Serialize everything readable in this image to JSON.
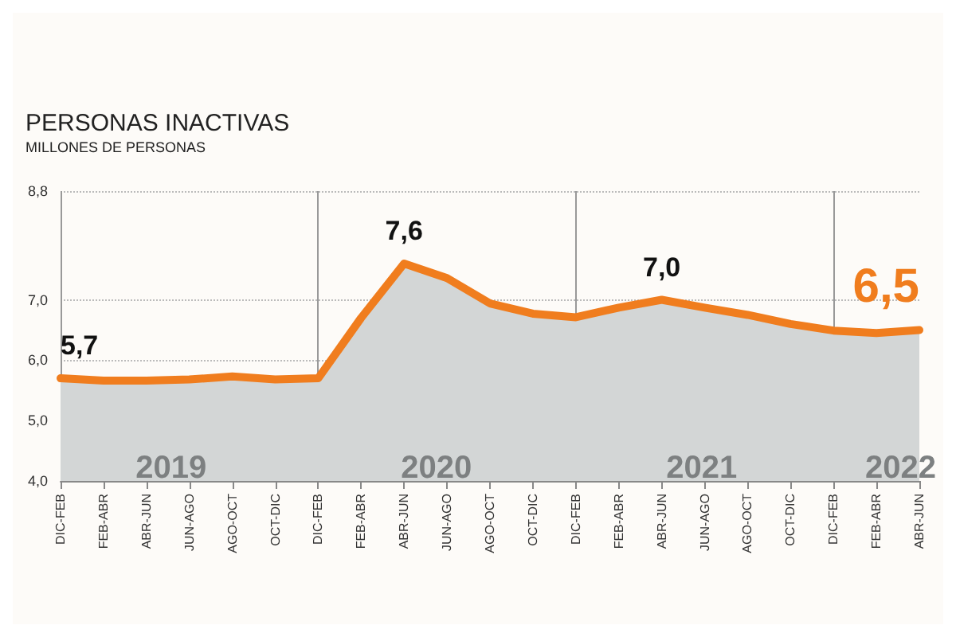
{
  "chart_data": {
    "type": "area",
    "title": "PERSONAS INACTIVAS",
    "subtitle": "MILLONES DE PERSONAS",
    "categories": [
      "DIC-FEB",
      "FEB-ABR",
      "ABR-JUN",
      "JUN-AGO",
      "AGO-OCT",
      "OCT-DIC",
      "DIC-FEB",
      "FEB-ABR",
      "ABR-JUN",
      "JUN-AGO",
      "AGO-OCT",
      "OCT-DIC",
      "DIC-FEB",
      "FEB-ABR",
      "ABR-JUN",
      "JUN-AGO",
      "AGO-OCT",
      "OCT-DIC",
      "DIC-FEB",
      "FEB-ABR",
      "ABR-JUN"
    ],
    "series": [
      {
        "color": "#f07d1e",
        "values": [
          5.7,
          5.66,
          5.66,
          5.68,
          5.73,
          5.68,
          5.7,
          6.7,
          7.6,
          7.36,
          6.94,
          6.77,
          6.71,
          6.87,
          7.0,
          6.87,
          6.75,
          6.6,
          6.49,
          6.45,
          6.5
        ],
        "value_labels": [
          "5,7",
          null,
          null,
          null,
          null,
          null,
          null,
          null,
          "7,6",
          null,
          null,
          null,
          null,
          null,
          "7,0",
          null,
          null,
          null,
          null,
          null,
          "6,5"
        ]
      }
    ],
    "ylim": [
      4,
      8.8
    ],
    "yticks": [
      {
        "value": 4,
        "label": "4,0"
      },
      {
        "value": 5,
        "label": "5,0"
      },
      {
        "value": 6,
        "label": "6,0"
      },
      {
        "value": 7,
        "label": "7,0"
      },
      {
        "value": 8.8,
        "label": "8,8"
      }
    ],
    "annotations": [
      "2019",
      "2020",
      "2021",
      "2022"
    ],
    "grid": true,
    "marker": "none",
    "line_style": "solid"
  }
}
